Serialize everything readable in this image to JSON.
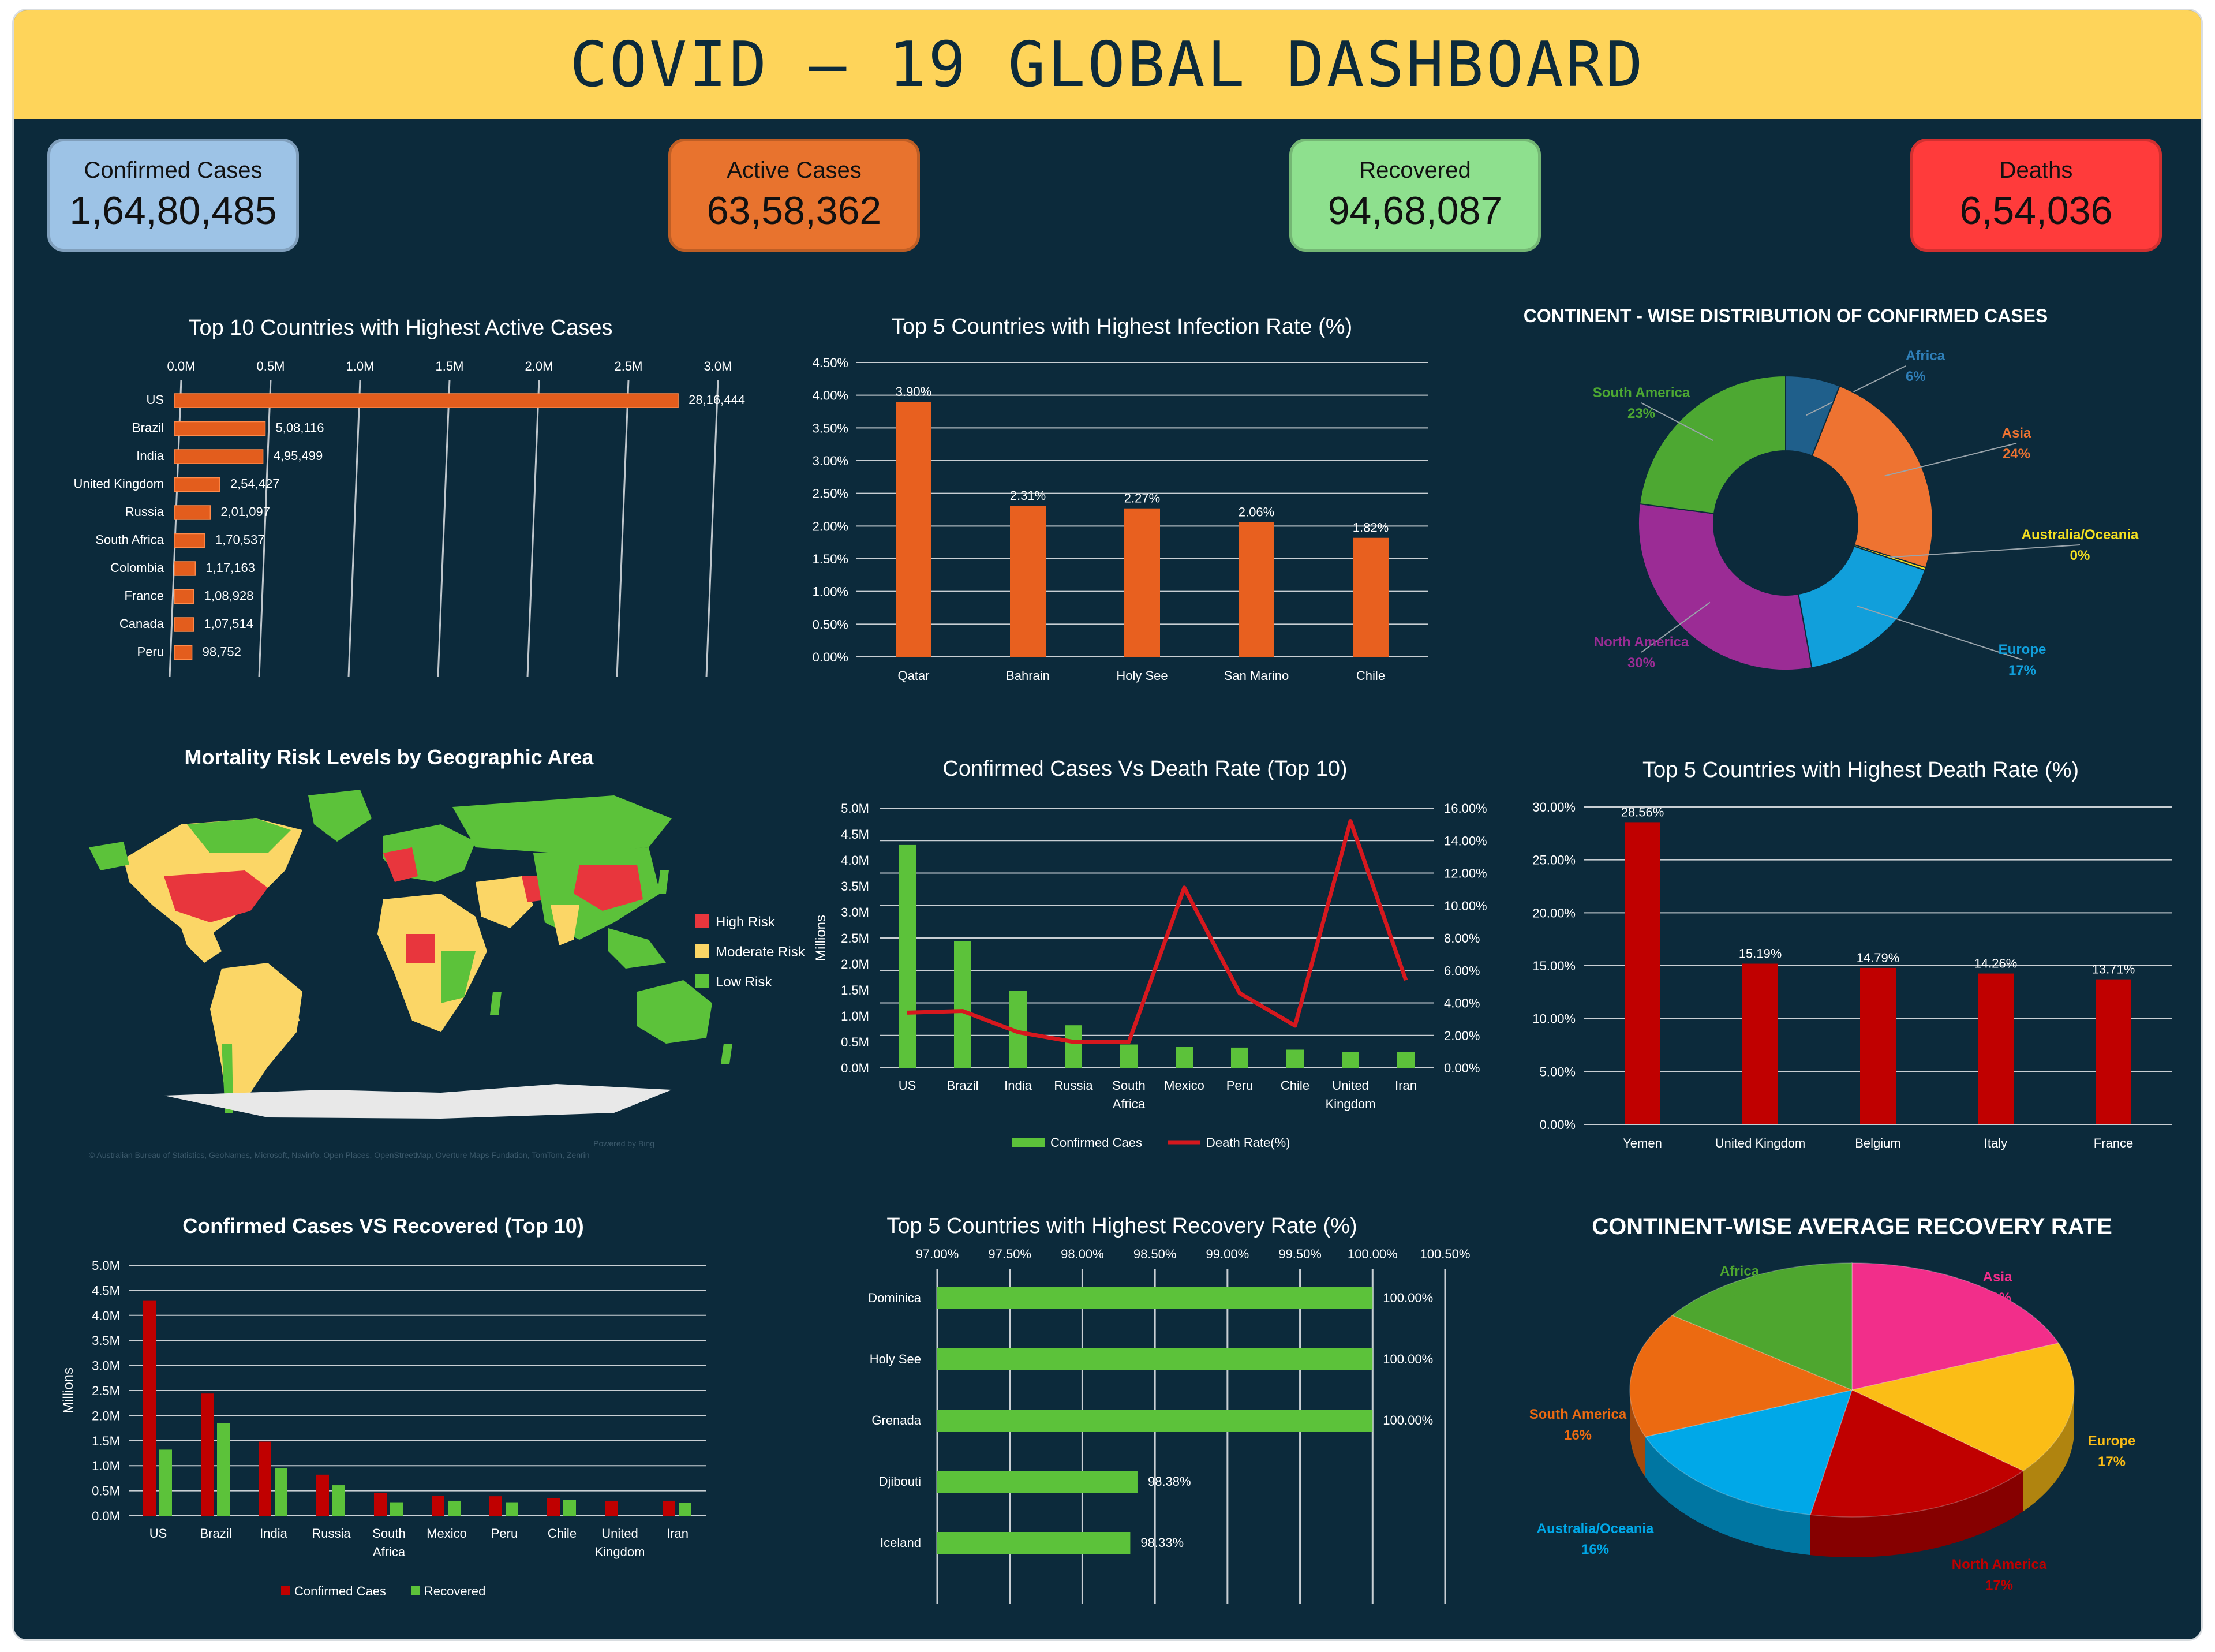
{
  "dashboard": {
    "title": "COVID – 19 GLOBAL DASHBOARD",
    "kpis": [
      {
        "label": "Confirmed Cases",
        "value": "1,64,80,485",
        "color": "#9dc3e6"
      },
      {
        "label": "Active Cases",
        "value": "63,58,362",
        "color": "#e8732e"
      },
      {
        "label": "Recovered",
        "value": "94,68,087",
        "color": "#8ee08e"
      },
      {
        "label": "Deaths",
        "value": "6,54,036",
        "color": "#ff3b3b"
      }
    ]
  },
  "map": {
    "title": "Mortality Risk Levels by Geographic Area",
    "legend": [
      {
        "label": "High Risk",
        "color": "#e8363d"
      },
      {
        "label": "Moderate Risk",
        "color": "#fbd666"
      },
      {
        "label": "Low Risk",
        "color": "#5cc23a"
      }
    ],
    "powered_by": "Powered by Bing",
    "attribution": "© Australian Bureau of Statistics, GeoNames, Microsoft, Navinfo, Open Places, OpenStreetMap, Overture Maps Fundation, TomTom, Zenrin"
  },
  "chart_data": [
    {
      "id": "active",
      "type": "bar",
      "orientation": "horizontal",
      "title": "Top 10 Countries with Highest Active Cases",
      "categories": [
        "US",
        "Brazil",
        "India",
        "United Kingdom",
        "Russia",
        "South Africa",
        "Colombia",
        "France",
        "Canada",
        "Peru"
      ],
      "values": [
        2816444,
        508116,
        495499,
        254427,
        201097,
        170537,
        117163,
        108928,
        107514,
        98752
      ],
      "value_labels": [
        "28,16,444",
        "5,08,116",
        "4,95,499",
        "2,54,427",
        "2,01,097",
        "1,70,537",
        "1,17,163",
        "1,08,928",
        "1,07,514",
        "98,752"
      ],
      "xlim": [
        0,
        3000000
      ],
      "xticks": [
        "0.0M",
        "0.5M",
        "1.0M",
        "1.5M",
        "2.0M",
        "2.5M",
        "3.0M"
      ],
      "color": "#e35d1d",
      "grid": true
    },
    {
      "id": "infection",
      "type": "bar",
      "title": "Top 5 Countries with Highest Infection Rate (%)",
      "categories": [
        "Qatar",
        "Bahrain",
        "Holy See",
        "San Marino",
        "Chile"
      ],
      "values": [
        3.9,
        2.31,
        2.27,
        2.06,
        1.82
      ],
      "value_labels": [
        "3.90%",
        "2.31%",
        "2.27%",
        "2.06%",
        "1.82%"
      ],
      "ylim": [
        0,
        4.5
      ],
      "yticks": [
        "0.00%",
        "0.50%",
        "1.00%",
        "1.50%",
        "2.00%",
        "2.50%",
        "3.00%",
        "3.50%",
        "4.00%",
        "4.50%"
      ],
      "color": "#e8601f",
      "grid": true
    },
    {
      "id": "continent_donut",
      "type": "pie",
      "style": "donut",
      "title": "CONTINENT - WISE DISTRIBUTION OF CONFIRMED CASES",
      "slices": [
        {
          "name": "Africa",
          "pct_label": "6%",
          "value": 6,
          "color": "#1f5f8b"
        },
        {
          "name": "Asia",
          "pct_label": "24%",
          "value": 24,
          "color": "#ee7331"
        },
        {
          "name": "Australia/Oceania",
          "pct_label": "0%",
          "value": 0.3,
          "color": "#f5e020"
        },
        {
          "name": "Europe",
          "pct_label": "17%",
          "value": 17,
          "color": "#119fdb"
        },
        {
          "name": "North America",
          "pct_label": "30%",
          "value": 30,
          "color": "#9b2c95"
        },
        {
          "name": "South America",
          "pct_label": "23%",
          "value": 23,
          "color": "#4da832"
        }
      ]
    },
    {
      "id": "combo",
      "type": "bar",
      "title": "Confirmed Cases Vs Death Rate (Top 10)",
      "categories": [
        "US",
        "Brazil",
        "India",
        "Russia",
        "South Africa",
        "Mexico",
        "Peru",
        "Chile",
        "United Kingdom",
        "Iran"
      ],
      "series": [
        {
          "name": "Confirmed Caes",
          "type": "bar",
          "values": [
            4.29,
            2.44,
            1.48,
            0.82,
            0.45,
            0.4,
            0.39,
            0.35,
            0.3,
            0.3
          ],
          "color": "#5cc23a"
        },
        {
          "name": "Death Rate(%)",
          "type": "line",
          "values": [
            3.4,
            3.5,
            2.2,
            1.6,
            1.6,
            11.1,
            4.6,
            2.6,
            15.2,
            5.4
          ],
          "color": "#d6181e"
        }
      ],
      "ylabel": "Millions",
      "ylim": [
        0,
        5
      ],
      "yticks": [
        "0.0M",
        "0.5M",
        "1.0M",
        "1.5M",
        "2.0M",
        "2.5M",
        "3.0M",
        "3.5M",
        "4.0M",
        "4.5M",
        "5.0M"
      ],
      "y2lim": [
        0,
        16
      ],
      "y2ticks": [
        "0.00%",
        "2.00%",
        "4.00%",
        "6.00%",
        "8.00%",
        "10.00%",
        "12.00%",
        "14.00%",
        "16.00%"
      ],
      "legend": "bottom",
      "grid": true
    },
    {
      "id": "death",
      "type": "bar",
      "title": "Top 5 Countries with Highest Death Rate (%)",
      "categories": [
        "Yemen",
        "United Kingdom",
        "Belgium",
        "Italy",
        "France"
      ],
      "values": [
        28.56,
        15.19,
        14.79,
        14.26,
        13.71
      ],
      "value_labels": [
        "28.56%",
        "15.19%",
        "14.79%",
        "14.26%",
        "13.71%"
      ],
      "ylim": [
        0,
        30
      ],
      "yticks": [
        "0.00%",
        "5.00%",
        "10.00%",
        "15.00%",
        "20.00%",
        "25.00%",
        "30.00%"
      ],
      "color": "#c00000",
      "grid": true
    },
    {
      "id": "recovered_combo",
      "type": "bar",
      "title": "Confirmed Cases VS Recovered (Top 10)",
      "categories": [
        "US",
        "Brazil",
        "India",
        "Russia",
        "South Africa",
        "Mexico",
        "Peru",
        "Chile",
        "United Kingdom",
        "Iran"
      ],
      "series": [
        {
          "name": "Confirmed Caes",
          "values": [
            4.29,
            2.44,
            1.48,
            0.82,
            0.45,
            0.4,
            0.39,
            0.35,
            0.3,
            0.3
          ],
          "color": "#c00000"
        },
        {
          "name": "Recovered",
          "values": [
            1.32,
            1.85,
            0.95,
            0.61,
            0.27,
            0.3,
            0.27,
            0.32,
            0.0,
            0.26
          ],
          "color": "#5cc23a"
        }
      ],
      "ylabel": "Millions",
      "ylim": [
        0,
        5
      ],
      "yticks": [
        "0.0M",
        "0.5M",
        "1.0M",
        "1.5M",
        "2.0M",
        "2.5M",
        "3.0M",
        "3.5M",
        "4.0M",
        "4.5M",
        "5.0M"
      ],
      "legend": "bottom",
      "grid": true
    },
    {
      "id": "recovery_rate",
      "type": "bar",
      "orientation": "horizontal",
      "title": "Top 5 Countries with Highest Recovery Rate (%)",
      "categories": [
        "Dominica",
        "Holy See",
        "Grenada",
        "Djibouti",
        "Iceland"
      ],
      "values": [
        100.0,
        100.0,
        100.0,
        98.38,
        98.33
      ],
      "value_labels": [
        "100.00%",
        "100.00%",
        "100.00%",
        "98.38%",
        "98.33%"
      ],
      "xlim": [
        97,
        100.5
      ],
      "xticks": [
        "97.00%",
        "97.50%",
        "98.00%",
        "98.50%",
        "99.00%",
        "99.50%",
        "100.00%",
        "100.50%"
      ],
      "color": "#5cc23a",
      "grid": true
    },
    {
      "id": "avg_recovery",
      "type": "pie",
      "style": "3d",
      "title": "CONTINENT-WISE AVERAGE RECOVERY RATE",
      "slices": [
        {
          "name": "Asia",
          "pct_label": "19%",
          "value": 19,
          "color": "#f22e8a"
        },
        {
          "name": "Europe",
          "pct_label": "17%",
          "value": 17,
          "color": "#fbbd16"
        },
        {
          "name": "North America",
          "pct_label": "17%",
          "value": 17,
          "color": "#c00000"
        },
        {
          "name": "Australia/Oceania",
          "pct_label": "16%",
          "value": 16,
          "color": "#00a8e8"
        },
        {
          "name": "South America",
          "pct_label": "16%",
          "value": 16,
          "color": "#ec6a11"
        },
        {
          "name": "Africa",
          "pct_label": "15%",
          "value": 15,
          "color": "#4ea62f"
        }
      ]
    }
  ]
}
